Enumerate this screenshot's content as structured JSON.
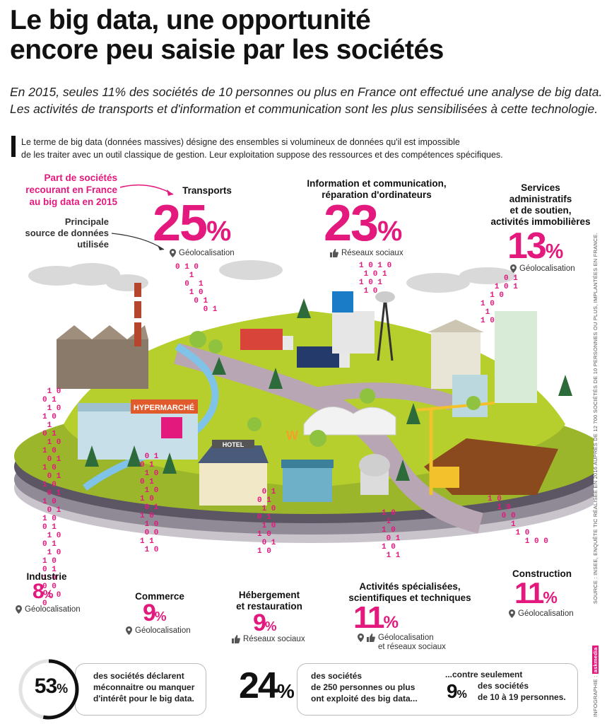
{
  "header": {
    "title_line1": "Le big data, une opportunité",
    "title_line2": "encore peu saisie par les sociétés",
    "subtitle_line1": "En 2015, seules 11% des sociétés de 10 personnes ou plus en France ont effectué une analyse de big data.",
    "subtitle_line2": "Les activités de transports et d'information et communication sont les plus sensibilisées à cette technologie.",
    "intro_line1": "Le terme de big data (données massives) désigne des ensembles si volumineux de données qu'il est impossible",
    "intro_line2": "de les traiter avec un outil classique de gestion. Leur exploitation suppose des ressources et des compétences spécifiques."
  },
  "legend": {
    "part_line1": "Part de sociétés",
    "part_line2": "recourant en France",
    "part_line3": "au big data en 2015",
    "source_line1": "Principale",
    "source_line2": "source de données",
    "source_line3": "utilisée"
  },
  "sectors": {
    "transports": {
      "name": "Transports",
      "value": "25",
      "unit": "%",
      "source": "Géolocalisation"
    },
    "info": {
      "name_line1": "Information et communication,",
      "name_line2": "réparation d'ordinateurs",
      "value": "23",
      "unit": "%",
      "source": "Réseaux sociaux"
    },
    "services": {
      "name_line1": "Services",
      "name_line2": "administratifs",
      "name_line3": "et de soutien,",
      "name_line4": "activités immobilières",
      "value": "13",
      "unit": "%",
      "source": "Géolocalisation"
    },
    "industrie": {
      "name": "Industrie",
      "value": "8",
      "unit": "%",
      "source": "Géolocalisation"
    },
    "commerce": {
      "name": "Commerce",
      "value": "9",
      "unit": "%",
      "source": "Géolocalisation"
    },
    "hebergement": {
      "name_line1": "Hébergement",
      "name_line2": "et restauration",
      "value": "9",
      "unit": "%",
      "source": "Réseaux sociaux"
    },
    "activites": {
      "name_line1": "Activités spécialisées,",
      "name_line2": "scientifiques et techniques",
      "value": "11",
      "unit": "%",
      "source_line1": "Géolocalisation",
      "source_line2": "et réseaux sociaux"
    },
    "construction": {
      "name": "Construction",
      "value": "11",
      "unit": "%",
      "source": "Géolocalisation"
    }
  },
  "illustration": {
    "hypermarche": "HYPERMARCHÉ",
    "hotel": "HOTEL",
    "w_sign": "W"
  },
  "bottom": {
    "stat1_value": "53",
    "stat1_unit": "%",
    "stat1_fraction": 0.53,
    "stat1_line1": "des sociétés déclarent",
    "stat1_line2": "méconnaitre ou manquer",
    "stat1_line3": "d'intérêt pour le big data.",
    "stat2_value": "24",
    "stat2_unit": "%",
    "stat2_line1": "des sociétés",
    "stat2_line2": "de 250 personnes ou plus",
    "stat2_line3": "ont exploité des big data...",
    "stat3_intro_line1": "...contre seulement",
    "stat3_value": "9",
    "stat3_unit": "%",
    "stat3_line1": "des sociétés",
    "stat3_line2": "de 10 à 19 personnes."
  },
  "credits": {
    "source_text": "SOURCE : INSEE, ENQUÊTE TIC RÉALISÉE EN 2016 AUPRÈS DE 12 700 SOCIÉTÉS DE 10 PERSONNES OU PLUS, IMPLANTÉES EN FRANCE.",
    "infographie": "INFOGRAPHIE :",
    "brand": "askmedia"
  },
  "colors": {
    "accent": "#e3197e",
    "grass": "#b7cf2c",
    "road": "#b8a6b4"
  }
}
